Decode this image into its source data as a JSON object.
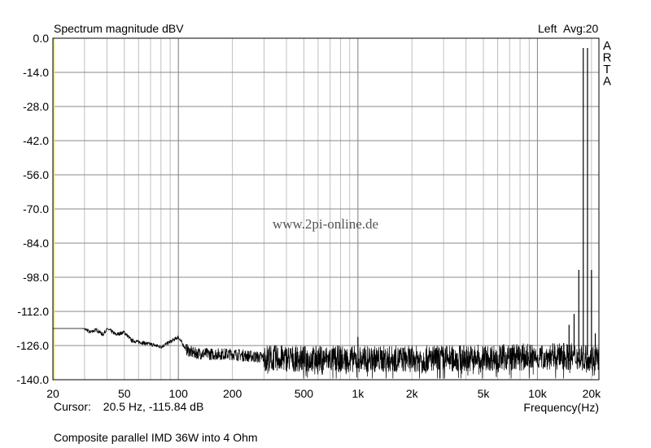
{
  "chart_data": {
    "type": "line",
    "title": "Spectrum magnitude dBV",
    "channel_label": "Left",
    "average_label": "Avg:20",
    "brand": "ARTA",
    "watermark": "www.2pi-online.de",
    "xlabel": "Frequency(Hz)",
    "ylabel": "",
    "x_scale": "log",
    "xlim": [
      20,
      22000
    ],
    "ylim": [
      -140,
      0
    ],
    "grid": true,
    "y_ticks": [
      {
        "v": 0,
        "label": "0.0"
      },
      {
        "v": -14,
        "label": "-14.0"
      },
      {
        "v": -28,
        "label": "-28.0"
      },
      {
        "v": -42,
        "label": "-42.0"
      },
      {
        "v": -56,
        "label": "-56.0"
      },
      {
        "v": -70,
        "label": "-70.0"
      },
      {
        "v": -84,
        "label": "-84.0"
      },
      {
        "v": -98,
        "label": "-98.0"
      },
      {
        "v": -112,
        "label": "-112.0"
      },
      {
        "v": -126,
        "label": "-126.0"
      },
      {
        "v": -140,
        "label": "-140.0"
      }
    ],
    "x_ticks": [
      {
        "v": 20,
        "label": "20"
      },
      {
        "v": 50,
        "label": "50"
      },
      {
        "v": 100,
        "label": "100"
      },
      {
        "v": 200,
        "label": "200"
      },
      {
        "v": 500,
        "label": "500"
      },
      {
        "v": 1000,
        "label": "1k"
      },
      {
        "v": 2000,
        "label": "2k"
      },
      {
        "v": 5000,
        "label": "5k"
      },
      {
        "v": 10000,
        "label": "10k"
      },
      {
        "v": 20000,
        "label": "20k"
      }
    ],
    "noise_floor": [
      [
        20,
        -115.8
      ],
      [
        22,
        -115
      ],
      [
        25,
        -117.5
      ],
      [
        28,
        -117
      ],
      [
        30,
        -119
      ],
      [
        32,
        -120.5
      ],
      [
        35,
        -119.5
      ],
      [
        38,
        -121.5
      ],
      [
        40,
        -119
      ],
      [
        45,
        -121.5
      ],
      [
        50,
        -120.5
      ],
      [
        55,
        -124
      ],
      [
        60,
        -124.5
      ],
      [
        70,
        -125.5
      ],
      [
        80,
        -126.5
      ],
      [
        90,
        -124.5
      ],
      [
        100,
        -122.5
      ],
      [
        110,
        -127.5
      ],
      [
        120,
        -129
      ],
      [
        150,
        -129.5
      ],
      [
        200,
        -129.5
      ],
      [
        300,
        -131
      ],
      [
        500,
        -131.5
      ],
      [
        1000,
        -131.5
      ],
      [
        2000,
        -131.5
      ],
      [
        5000,
        -131
      ],
      [
        10000,
        -130.5
      ],
      [
        15000,
        -130.5
      ],
      [
        22000,
        -131
      ]
    ],
    "peaks": [
      {
        "x": 1000,
        "y": -122.5
      },
      {
        "x": 14000,
        "y": -125
      },
      {
        "x": 15000,
        "y": -117.5
      },
      {
        "x": 16000,
        "y": -113
      },
      {
        "x": 17000,
        "y": -95
      },
      {
        "x": 18000,
        "y": -4
      },
      {
        "x": 19000,
        "y": -4
      },
      {
        "x": 20000,
        "y": -95
      },
      {
        "x": 21000,
        "y": -121
      }
    ]
  },
  "cursor": {
    "label": "Cursor:",
    "value": "20.5 Hz, -115.84 dB"
  },
  "caption": "Composite parallel IMD 36W into 4 Ohm"
}
